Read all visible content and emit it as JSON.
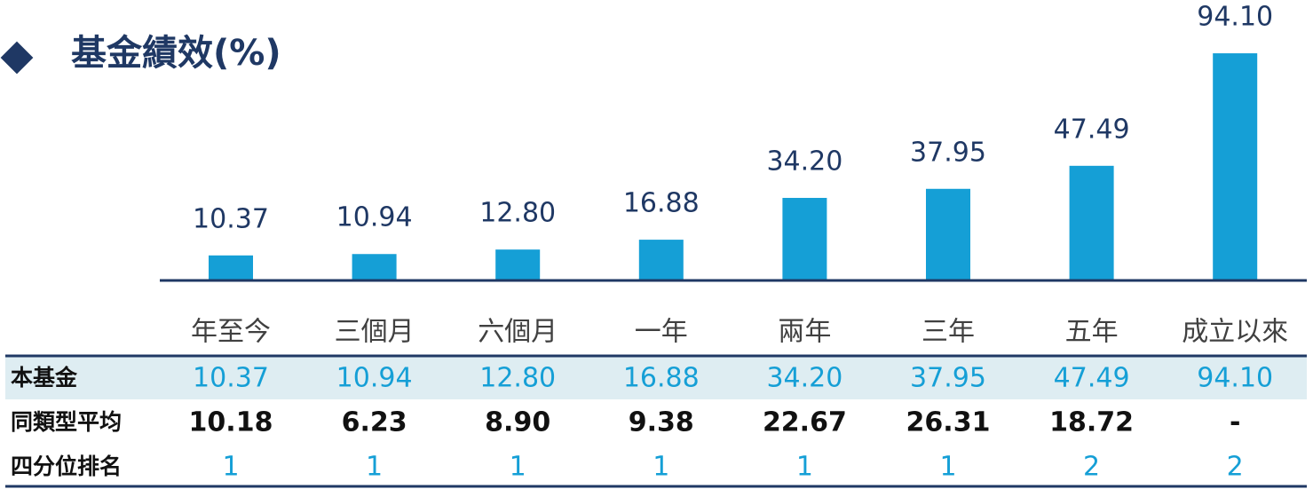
{
  "chart_data": {
    "type": "bar",
    "title": "基金績效(%)",
    "categories": [
      "年至今",
      "三個月",
      "六個月",
      "一年",
      "兩年",
      "三年",
      "五年",
      "成立以來"
    ],
    "values": [
      10.37,
      10.94,
      12.8,
      16.88,
      34.2,
      37.95,
      47.49,
      94.1
    ],
    "value_labels": [
      "10.37",
      "10.94",
      "12.80",
      "16.88",
      "34.20",
      "37.95",
      "47.49",
      "94.10"
    ],
    "color": "#159fd6"
  },
  "table": {
    "fund_label": "本基金",
    "rows": [
      {
        "label": "同類型平均",
        "cells": [
          "10.18",
          "6.23",
          "8.90",
          "9.38",
          "22.67",
          "26.31",
          "18.72",
          "-"
        ]
      },
      {
        "label": "四分位排名",
        "cells": [
          "1",
          "1",
          "1",
          "1",
          "1",
          "1",
          "2",
          "2"
        ]
      }
    ]
  }
}
